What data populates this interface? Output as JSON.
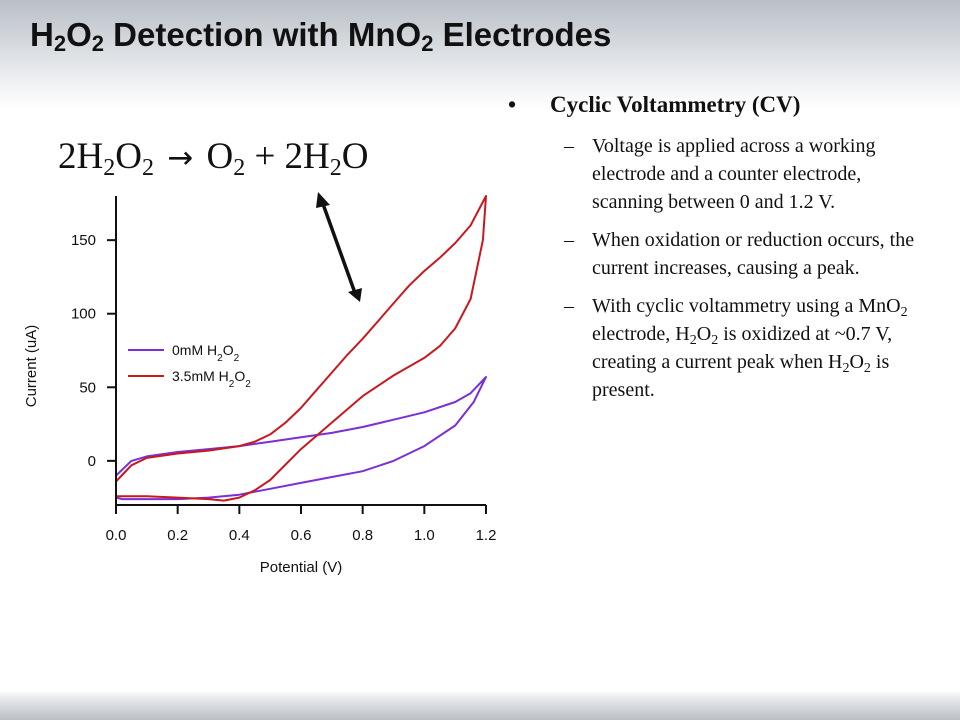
{
  "slide": {
    "title": {
      "parts": [
        {
          "t": "H"
        },
        {
          "t": "2",
          "sub": true
        },
        {
          "t": "O"
        },
        {
          "t": "2",
          "sub": true
        },
        {
          "t": " Detection with MnO"
        },
        {
          "t": "2",
          "sub": true
        },
        {
          "t": " Electrodes"
        }
      ]
    },
    "equation": {
      "parts": [
        {
          "t": "2H"
        },
        {
          "t": "2",
          "sub": true
        },
        {
          "t": "O"
        },
        {
          "t": "2",
          "sub": true
        }
      ],
      "arrow_glyph": "→",
      "rhs_parts": [
        {
          "t": "O"
        },
        {
          "t": "2",
          "sub": true
        },
        {
          "t": " + 2H"
        },
        {
          "t": "2",
          "sub": true
        },
        {
          "t": "O"
        }
      ]
    },
    "bullets": {
      "main_marker": "•",
      "main": "Cyclic Voltammetry  (CV)",
      "sub_marker": "–",
      "items": [
        {
          "parts": [
            {
              "t": "Voltage is applied across a working electrode and a counter electrode, scanning between 0 and 1.2 V."
            }
          ]
        },
        {
          "parts": [
            {
              "t": "When oxidation or reduction occurs, the current increases, causing a peak."
            }
          ]
        },
        {
          "parts": [
            {
              "t": "With cyclic voltammetry using a MnO"
            },
            {
              "t": "2",
              "sub": true
            },
            {
              "t": " electrode, H"
            },
            {
              "t": "2",
              "sub": true
            },
            {
              "t": "O"
            },
            {
              "t": "2",
              "sub": true
            },
            {
              "t": " is oxidized at ~0.7 V, creating a current peak when H"
            },
            {
              "t": "2",
              "sub": true
            },
            {
              "t": "O"
            },
            {
              "t": "2",
              "sub": true
            },
            {
              "t": " is present."
            }
          ]
        }
      ]
    }
  },
  "chart_data": {
    "type": "line",
    "title": "",
    "xlabel": "Potential (V)",
    "ylabel": "Current (uA)",
    "xlim": [
      0,
      1.2
    ],
    "ylim": [
      -30,
      180
    ],
    "xticks": [
      0.0,
      0.2,
      0.4,
      0.6,
      0.8,
      1.0,
      1.2
    ],
    "xtick_labels": [
      "0.0",
      "0.2",
      "0.4",
      "0.6",
      "0.8",
      "1.0",
      "1.2"
    ],
    "yticks": [
      0,
      50,
      100,
      150
    ],
    "ytick_labels": [
      "0",
      "50",
      "100",
      "150"
    ],
    "grid": false,
    "legend": "center-left",
    "annotation": "double-headed arrow pointing from the equation toward the current peak",
    "series": [
      {
        "name_parts": [
          {
            "t": "0mM H"
          },
          {
            "t": "2",
            "sub": true
          },
          {
            "t": "O"
          },
          {
            "t": "2",
            "sub": true
          }
        ],
        "color": "#7b2fd4",
        "points": [
          [
            0.0,
            -10
          ],
          [
            0.05,
            0
          ],
          [
            0.1,
            3
          ],
          [
            0.2,
            6
          ],
          [
            0.3,
            8
          ],
          [
            0.4,
            10
          ],
          [
            0.5,
            13
          ],
          [
            0.6,
            16
          ],
          [
            0.7,
            19
          ],
          [
            0.8,
            23
          ],
          [
            0.9,
            28
          ],
          [
            1.0,
            33
          ],
          [
            1.1,
            40
          ],
          [
            1.15,
            46
          ],
          [
            1.2,
            57
          ],
          [
            1.16,
            40
          ],
          [
            1.1,
            24
          ],
          [
            1.0,
            10
          ],
          [
            0.9,
            0
          ],
          [
            0.8,
            -7
          ],
          [
            0.7,
            -11
          ],
          [
            0.6,
            -15
          ],
          [
            0.5,
            -19
          ],
          [
            0.4,
            -23
          ],
          [
            0.3,
            -25
          ],
          [
            0.2,
            -26
          ],
          [
            0.1,
            -26
          ],
          [
            0.02,
            -26
          ],
          [
            0.0,
            -25
          ]
        ]
      },
      {
        "name_parts": [
          {
            "t": "3.5mM H"
          },
          {
            "t": "2",
            "sub": true
          },
          {
            "t": "O"
          },
          {
            "t": "2",
            "sub": true
          }
        ],
        "color": "#c8191e",
        "points": [
          [
            0.0,
            -14
          ],
          [
            0.05,
            -3
          ],
          [
            0.1,
            2
          ],
          [
            0.2,
            5
          ],
          [
            0.3,
            7
          ],
          [
            0.4,
            10
          ],
          [
            0.45,
            13
          ],
          [
            0.5,
            18
          ],
          [
            0.55,
            26
          ],
          [
            0.6,
            36
          ],
          [
            0.65,
            48
          ],
          [
            0.7,
            60
          ],
          [
            0.75,
            72
          ],
          [
            0.8,
            83
          ],
          [
            0.85,
            95
          ],
          [
            0.9,
            107
          ],
          [
            0.95,
            119
          ],
          [
            1.0,
            129
          ],
          [
            1.05,
            138
          ],
          [
            1.1,
            148
          ],
          [
            1.15,
            160
          ],
          [
            1.2,
            180
          ],
          [
            1.19,
            150
          ],
          [
            1.15,
            110
          ],
          [
            1.1,
            90
          ],
          [
            1.05,
            78
          ],
          [
            1.0,
            70
          ],
          [
            0.9,
            58
          ],
          [
            0.8,
            44
          ],
          [
            0.7,
            26
          ],
          [
            0.6,
            8
          ],
          [
            0.5,
            -13
          ],
          [
            0.45,
            -20
          ],
          [
            0.4,
            -25
          ],
          [
            0.35,
            -27
          ],
          [
            0.3,
            -26
          ],
          [
            0.2,
            -25
          ],
          [
            0.1,
            -24
          ],
          [
            0.02,
            -24
          ],
          [
            0.0,
            -24
          ]
        ]
      }
    ]
  }
}
